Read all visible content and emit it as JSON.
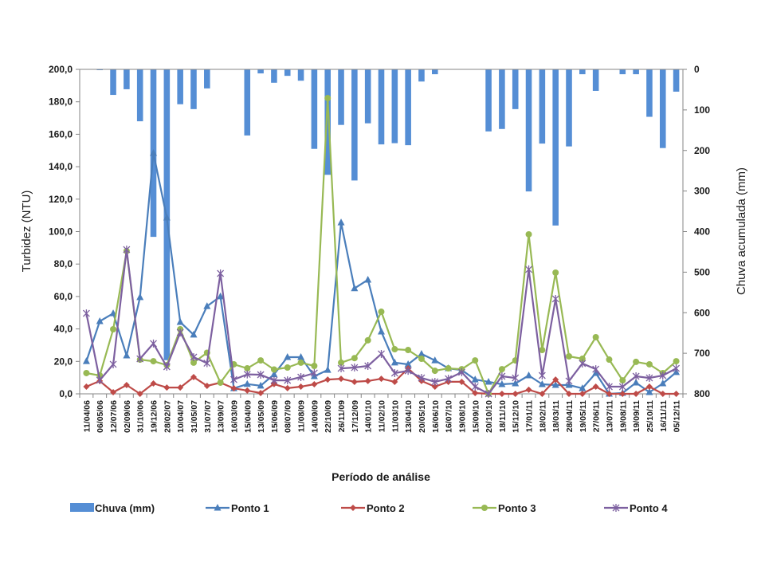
{
  "chart_data": {
    "type": "bar+line",
    "title": "",
    "xlabel": "Período de análise",
    "ylabel": "Turbidez (NTU)",
    "y2label": "Chuva acumulada (mm)",
    "ylim": [
      0,
      200
    ],
    "y2lim": [
      0,
      800
    ],
    "y2_inverted": true,
    "yticks": [
      "0,0",
      "20,0",
      "40,0",
      "60,0",
      "80,0",
      "100,0",
      "120,0",
      "140,0",
      "160,0",
      "180,0",
      "200,0"
    ],
    "y2ticks": [
      "0",
      "100",
      "200",
      "300",
      "400",
      "500",
      "600",
      "700",
      "800"
    ],
    "grid": false,
    "legend_position": "bottom",
    "categories": [
      "11/04/06",
      "06/05/06",
      "12/07/06",
      "02/09/06",
      "31/10/06",
      "19/12/06",
      "28/02/07",
      "10/04/07",
      "31/05/07",
      "31/07/07",
      "13/09/07",
      "16/03/09",
      "15/04/09",
      "13/05/09",
      "15/06/09",
      "08/07/09",
      "11/08/09",
      "14/09/09",
      "22/10/09",
      "26/11/09",
      "17/12/09",
      "14/01/10",
      "11/02/10",
      "11/03/10",
      "13/04/10",
      "20/05/10",
      "16/06/10",
      "16/07/10",
      "19/08/10",
      "15/09/10",
      "20/10/10",
      "18/11/10",
      "15/12/10",
      "17/01/11",
      "18/02/11",
      "18/03/11",
      "28/04/11",
      "19/05/11",
      "27/06/11",
      "13/07/11",
      "19/08/11",
      "19/09/11",
      "25/10/11",
      "16/11/11",
      "05/12/11"
    ],
    "bar_series": {
      "name": "Chuva (mm)",
      "axis": "right",
      "color": "#558ed5",
      "values": [
        0,
        2,
        63,
        49,
        128,
        413,
        717,
        86,
        98,
        47,
        0,
        0,
        163,
        10,
        33,
        16,
        28,
        196,
        260,
        137,
        274,
        133,
        185,
        182,
        187,
        30,
        12,
        0,
        0,
        0,
        153,
        147,
        98,
        301,
        183,
        385,
        190,
        12,
        53,
        0,
        12,
        12,
        117,
        194,
        55
      ]
    },
    "series": [
      {
        "name": "Ponto 1",
        "color": "#4a7ebb",
        "marker": "triangle",
        "values": [
          20.1,
          44.7,
          49.6,
          23.6,
          59.5,
          148.4,
          108.6,
          44.2,
          36.4,
          54.0,
          60.0,
          3.4,
          6.0,
          5.0,
          12.0,
          22.6,
          22.6,
          10.8,
          14.7,
          105.6,
          65.0,
          70.3,
          38.3,
          19.2,
          18.2,
          24.6,
          20.6,
          15.7,
          14.7,
          8.8,
          7.4,
          5.9,
          6.4,
          11.3,
          5.9,
          5.4,
          5.4,
          3.4,
          12.8,
          0.0,
          0.5,
          6.9,
          1.0,
          6.4,
          13.3
        ]
      },
      {
        "name": "Ponto 2",
        "color": "#be4b48",
        "marker": "diamond",
        "values": [
          4.4,
          7.9,
          1.0,
          5.4,
          0.0,
          6.4,
          3.9,
          3.9,
          10.3,
          4.9,
          6.9,
          3.4,
          2.0,
          0.5,
          6.0,
          3.5,
          4.4,
          5.9,
          8.8,
          9.3,
          7.4,
          7.9,
          9.3,
          7.4,
          15.7,
          7.9,
          4.4,
          7.4,
          7.4,
          0.5,
          0.0,
          0.0,
          0.0,
          2.5,
          0.0,
          8.8,
          0.0,
          0.0,
          4.4,
          0.0,
          0.0,
          0.0,
          4.4,
          0.0,
          0.0
        ]
      },
      {
        "name": "Ponto 3",
        "color": "#98b954",
        "marker": "circle",
        "values": [
          12.8,
          11.3,
          39.8,
          88.0,
          21.1,
          20.1,
          17.7,
          39.8,
          19.2,
          25.3,
          6.9,
          18.2,
          15.7,
          20.6,
          15.0,
          16.2,
          19.2,
          17.2,
          182.3,
          19.2,
          22.0,
          33.0,
          50.6,
          27.5,
          27.0,
          21.6,
          14.2,
          15.7,
          15.2,
          20.6,
          0.0,
          15.2,
          20.6,
          98.3,
          27.0,
          74.7,
          23.1,
          21.6,
          34.9,
          21.1,
          8.3,
          19.7,
          18.2,
          12.8,
          20.1
        ]
      },
      {
        "name": "Ponto 4",
        "color": "#7d60a0",
        "marker": "star",
        "values": [
          49.6,
          8.4,
          18.2,
          88.9,
          21.6,
          31.0,
          16.7,
          37.8,
          22.6,
          18.9,
          74.2,
          8.8,
          12.0,
          11.8,
          8.3,
          8.3,
          10.3,
          12.8,
          null,
          15.7,
          16.2,
          17.2,
          24.6,
          12.8,
          14.2,
          9.8,
          7.4,
          9.3,
          13.3,
          4.4,
          0.0,
          10.8,
          9.8,
          76.7,
          11.3,
          58.5,
          7.9,
          18.7,
          15.2,
          4.4,
          4.4,
          10.8,
          9.8,
          11.3,
          15.7
        ]
      }
    ]
  },
  "legend": {
    "items": [
      "Chuva (mm)",
      "Ponto 1",
      "Ponto 2",
      "Ponto 3",
      "Ponto 4"
    ]
  }
}
